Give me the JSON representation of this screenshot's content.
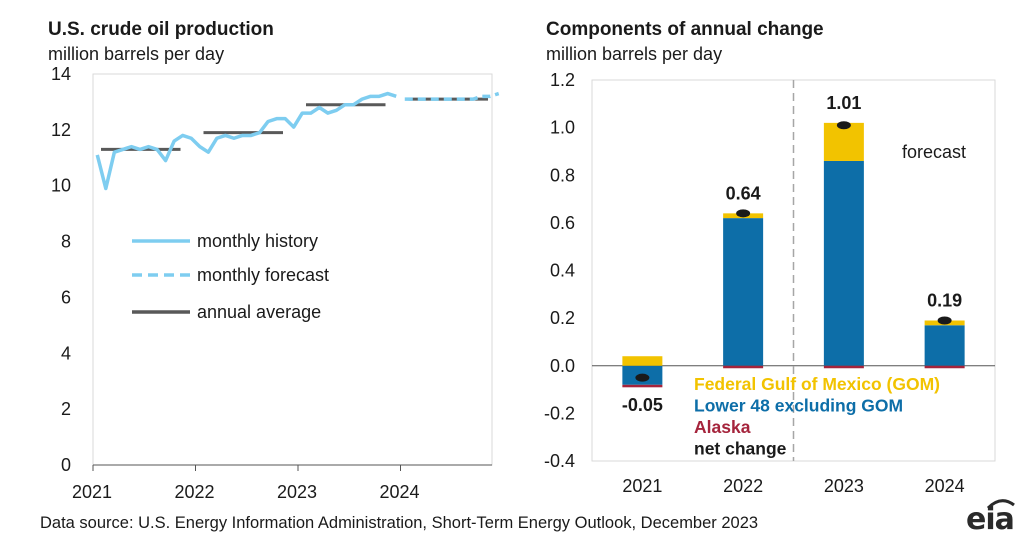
{
  "colors": {
    "history": "#7ECDF0",
    "forecast": "#7ECDF0",
    "annual": "#595959",
    "gom": "#F2C300",
    "lower48": "#0D6EA8",
    "alaska": "#A5243C",
    "net": "#1a1a1a",
    "grid": "#D9D9D9"
  },
  "chart_data": [
    {
      "type": "line",
      "title": "U.S. crude oil production",
      "subtitle": "million barrels per day",
      "ylim": [
        0,
        14
      ],
      "yticks": [
        0,
        2,
        4,
        6,
        8,
        10,
        12,
        14
      ],
      "xticks": [
        "2021",
        "2022",
        "2023",
        "2024"
      ],
      "legend": {
        "history": "monthly history",
        "forecast": "monthly forecast",
        "annual": "annual average"
      },
      "series": [
        {
          "name": "monthly history",
          "x": [
            "2021-01",
            "2021-02",
            "2021-03",
            "2021-04",
            "2021-05",
            "2021-06",
            "2021-07",
            "2021-08",
            "2021-09",
            "2021-10",
            "2021-11",
            "2021-12",
            "2022-01",
            "2022-02",
            "2022-03",
            "2022-04",
            "2022-05",
            "2022-06",
            "2022-07",
            "2022-08",
            "2022-09",
            "2022-10",
            "2022-11",
            "2022-12",
            "2023-01",
            "2023-02",
            "2023-03",
            "2023-04",
            "2023-05",
            "2023-06",
            "2023-07",
            "2023-08",
            "2023-09",
            "2023-10",
            "2023-11",
            "2023-12"
          ],
          "y": [
            11.1,
            9.9,
            11.2,
            11.3,
            11.4,
            11.3,
            11.4,
            11.3,
            10.9,
            11.6,
            11.8,
            11.7,
            11.4,
            11.2,
            11.7,
            11.8,
            11.7,
            11.8,
            11.8,
            11.9,
            12.3,
            12.4,
            12.4,
            12.1,
            12.6,
            12.6,
            12.8,
            12.6,
            12.7,
            12.9,
            12.9,
            13.1,
            13.2,
            13.2,
            13.3,
            13.2
          ]
        },
        {
          "name": "monthly forecast",
          "x": [
            "2024-01",
            "2024-02",
            "2024-03",
            "2024-04",
            "2024-05",
            "2024-06",
            "2024-07",
            "2024-08",
            "2024-09",
            "2024-10",
            "2024-11",
            "2024-12"
          ],
          "y": [
            13.1,
            13.1,
            13.1,
            13.1,
            13.1,
            13.1,
            13.1,
            13.1,
            13.1,
            13.2,
            13.2,
            13.3
          ]
        },
        {
          "name": "annual average",
          "segments": [
            {
              "year": "2021",
              "y": 11.3
            },
            {
              "year": "2022",
              "y": 11.9
            },
            {
              "year": "2023",
              "y": 12.9
            },
            {
              "year": "2024",
              "y": 13.1
            }
          ]
        }
      ]
    },
    {
      "type": "bar",
      "stacked": true,
      "title": "Components of annual change",
      "subtitle": "million barrels per day",
      "categories": [
        "2021",
        "2022",
        "2023",
        "2024"
      ],
      "ylim": [
        -0.4,
        1.2
      ],
      "yticks": [
        "1.2",
        "1.0",
        "0.8",
        "0.6",
        "0.4",
        "0.2",
        "0.0",
        "-0.2",
        "-0.4"
      ],
      "annotation": "forecast",
      "series": [
        {
          "name": "Federal Gulf  of Mexico (GOM)",
          "values": [
            0.04,
            0.02,
            0.16,
            0.02
          ]
        },
        {
          "name": "Lower 48 excluding GOM",
          "values": [
            -0.08,
            0.62,
            0.86,
            0.17
          ]
        },
        {
          "name": "Alaska",
          "values": [
            -0.01,
            -0.003,
            -0.005,
            -0.005
          ]
        }
      ],
      "net_change": {
        "name": "net change",
        "values": [
          -0.05,
          0.64,
          1.01,
          0.19
        ],
        "labels": [
          "-0.05",
          "0.64",
          "1.01",
          "0.19"
        ]
      }
    }
  ],
  "footer": {
    "source": "Data source: U.S. Energy Information Administration, Short-Term Energy Outlook, December 2023",
    "logo": "eia"
  }
}
